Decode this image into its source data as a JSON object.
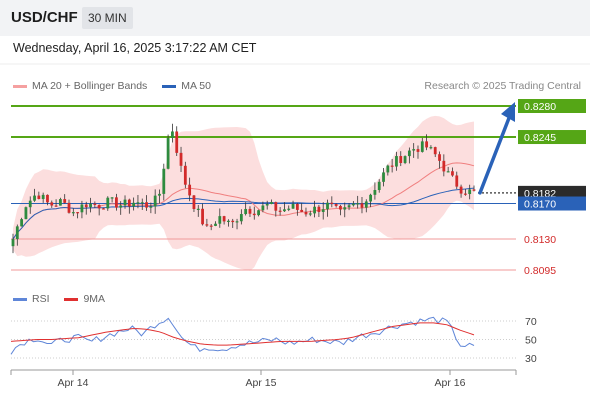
{
  "header": {
    "symbol": "USD/CHF",
    "timeframe": "30 MIN"
  },
  "date_line": "Wednesday, April 16, 2025 3:17:22 AM CET",
  "legend": {
    "ma20_label": "MA 20 + Bollinger Bands",
    "ma50_label": "MA 50",
    "credit": "Research © 2025 Trading Central"
  },
  "colors": {
    "bullish": "#2e8b3e",
    "bearish": "#d22a2a",
    "ma20": "#f07f7f",
    "ma50": "#2a62b8",
    "band": "#fbd3d3",
    "resistance": "#55a616",
    "support": "#f19a9a",
    "arrow": "#2a62b8",
    "rsi": "#5f86d8",
    "rsi_ma": "#e03030"
  },
  "chart_data": [
    {
      "type": "candlestick",
      "title": "USD/CHF",
      "ylim": [
        0.8075,
        0.8295
      ],
      "x_ticks": [
        "Apr 14",
        "Apr 15",
        "Apr 16"
      ],
      "levels": [
        {
          "value": "0.8280",
          "kind": "resistance"
        },
        {
          "value": "0.8245",
          "kind": "resistance"
        },
        {
          "value": "0.8182",
          "kind": "current"
        },
        {
          "value": "0.8170",
          "kind": "pivot"
        },
        {
          "value": "0.8130",
          "kind": "support"
        },
        {
          "value": "0.8095",
          "kind": "support"
        }
      ],
      "series": [
        {
          "name": "MA 20 + Bollinger Bands"
        },
        {
          "name": "MA 50"
        }
      ],
      "price_anchors": [
        0.813,
        0.8168,
        0.8182,
        0.8168,
        0.8172,
        0.816,
        0.817,
        0.8168,
        0.8172,
        0.8168,
        0.8172,
        0.8168,
        0.8175,
        0.8262,
        0.82,
        0.8166,
        0.814,
        0.8155,
        0.8145,
        0.8165,
        0.8162,
        0.8168,
        0.8162,
        0.8166,
        0.816,
        0.8164,
        0.8168,
        0.8158,
        0.8168,
        0.8172,
        0.8192,
        0.8212,
        0.8222,
        0.8232,
        0.8235,
        0.8222,
        0.82,
        0.8186,
        0.8182
      ]
    },
    {
      "type": "line",
      "title": "RSI",
      "ylim": [
        30,
        70
      ],
      "y_ticks": [
        "70",
        "50",
        "30"
      ],
      "series": [
        {
          "name": "RSI"
        },
        {
          "name": "9MA"
        }
      ],
      "rsi_anchors": [
        38,
        48,
        52,
        44,
        50,
        52,
        47,
        53,
        58,
        62,
        56,
        68,
        75,
        50,
        40,
        42,
        40,
        44,
        46,
        48,
        50,
        46,
        48,
        50,
        48,
        46,
        52,
        56,
        60,
        65,
        68,
        70,
        72,
        68,
        44,
        42
      ],
      "rsi_ma_anchors": [
        48,
        49,
        50,
        50,
        51,
        52,
        55,
        58,
        60,
        62,
        61,
        58,
        52,
        48,
        45,
        44,
        44,
        45,
        46,
        47,
        48,
        48,
        48,
        49,
        50,
        52,
        56,
        60,
        64,
        66,
        68,
        68,
        66,
        60,
        55
      ]
    }
  ]
}
